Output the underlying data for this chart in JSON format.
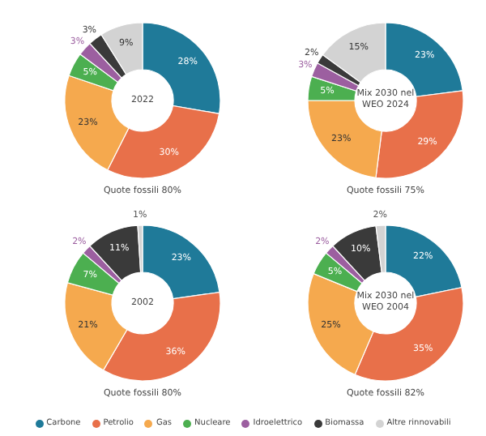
{
  "chart_data": [
    {
      "type": "donut",
      "title": "2022",
      "annotations": [
        "Quote fossili 80%"
      ],
      "categories": [
        "Carbone",
        "Petrolio",
        "Gas",
        "Nucleare",
        "Idroelettrico",
        "Biomassa",
        "Altre rinnovabili"
      ],
      "values": [
        28,
        30,
        23,
        5,
        3,
        3,
        9
      ],
      "value_labels": [
        "28%",
        "30%",
        "23%",
        "5%",
        "3%",
        "3%",
        "9%"
      ],
      "colors": [
        "#1f7a99",
        "#e8704a",
        "#f5a94e",
        "#4caf50",
        "#9c5fa0",
        "#3a3a3a",
        "#d3d3d3"
      ],
      "legend": "bottom"
    },
    {
      "type": "donut",
      "title": "Mix 2030 nel WEO 2024",
      "annotations": [
        "Quote fossili 75%"
      ],
      "categories": [
        null,
        null,
        null,
        null,
        null,
        null,
        null
      ],
      "values": [
        23,
        29,
        23,
        5,
        3,
        2,
        15
      ],
      "value_labels": [
        "23%",
        "29%",
        "23%",
        "5%",
        "3%",
        "2%",
        "15%"
      ],
      "colors": [
        "#1f7a99",
        "#e8704a",
        "#f5a94e",
        "#4caf50",
        "#9c5fa0",
        "#3a3a3a",
        "#d3d3d3"
      ]
    },
    {
      "type": "donut",
      "title": "2002",
      "annotations": [
        "Quote fossili 80%"
      ],
      "categories": [
        null,
        null,
        null,
        null,
        null,
        null,
        null
      ],
      "values": [
        23,
        36,
        21,
        7,
        2,
        11,
        1
      ],
      "value_labels": [
        "23%",
        "36%",
        "21%",
        "7%",
        "2%",
        "11%",
        "1%"
      ],
      "colors": [
        "#1f7a99",
        "#e8704a",
        "#f5a94e",
        "#4caf50",
        "#9c5fa0",
        "#3a3a3a",
        "#d3d3d3"
      ]
    },
    {
      "type": "donut",
      "title": "Mix 2030 nel WEO 2004",
      "annotations": [
        "Quote fossili 82%"
      ],
      "categories": [
        null,
        null,
        null,
        null,
        null,
        null,
        null
      ],
      "values": [
        22,
        35,
        25,
        5,
        2,
        10,
        2
      ],
      "value_labels": [
        "22%",
        "35%",
        "25%",
        "5%",
        "2%",
        "10%",
        "2%"
      ],
      "colors": [
        "#1f7a99",
        "#e8704a",
        "#f5a94e",
        "#4caf50",
        "#9c5fa0",
        "#3a3a3a",
        "#d3d3d3"
      ]
    }
  ]
}
